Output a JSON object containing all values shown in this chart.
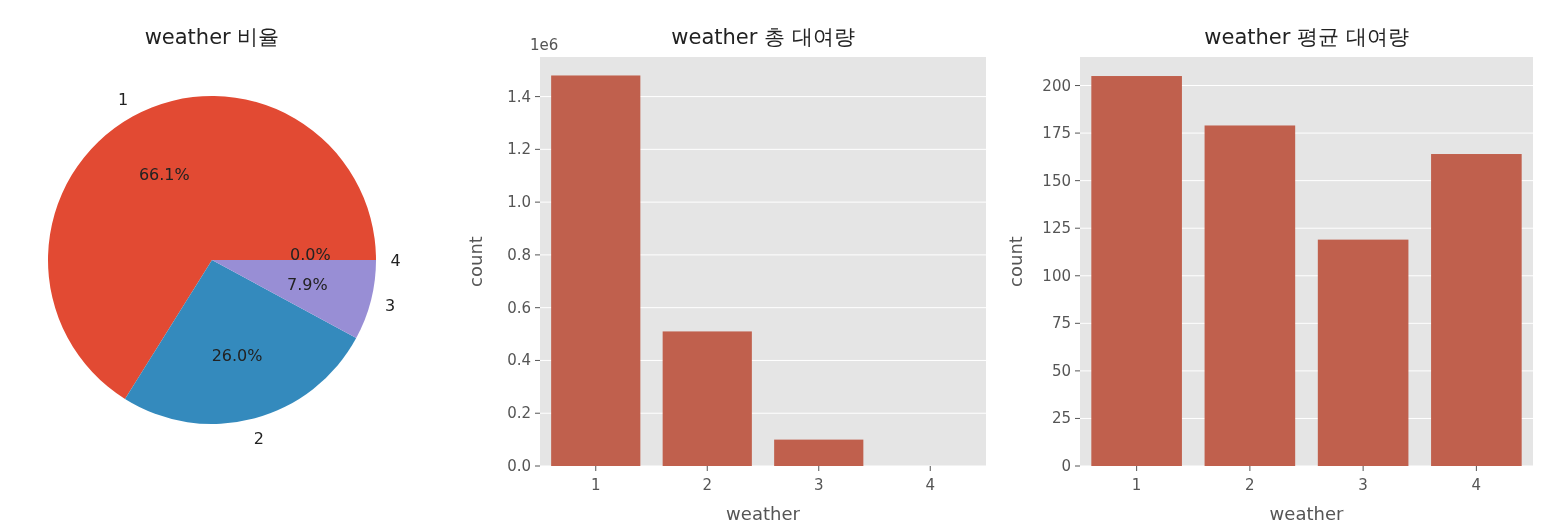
{
  "chart_data": [
    {
      "type": "pie",
      "title": "weather 비율",
      "categories": [
        "1",
        "2",
        "3",
        "4"
      ],
      "values": [
        66.1,
        26.0,
        7.9,
        0.0
      ],
      "colors": [
        "#e24a33",
        "#348abd",
        "#988ed5",
        "#777777"
      ],
      "value_labels": [
        "66.1%",
        "26.0%",
        "7.9%",
        "0.0%"
      ]
    },
    {
      "type": "bar",
      "title": "weather 총 대여량",
      "categories": [
        "1",
        "2",
        "3",
        "4"
      ],
      "values": [
        1.48,
        0.51,
        0.1,
        0
      ],
      "color": "#c0604d",
      "xlabel": "weather",
      "ylabel": "count",
      "ylim": [
        0,
        1.55
      ],
      "yticks": [
        {
          "value": 0,
          "label": "0.0"
        },
        {
          "value": 0.2,
          "label": "0.2"
        },
        {
          "value": 0.4,
          "label": "0.4"
        },
        {
          "value": 0.6,
          "label": "0.6"
        },
        {
          "value": 0.8,
          "label": "0.8"
        },
        {
          "value": 1,
          "label": "1.0"
        },
        {
          "value": 1.2,
          "label": "1.2"
        },
        {
          "value": 1.4,
          "label": "1.4"
        }
      ],
      "grid": "y",
      "annotations": [
        "1e6"
      ]
    },
    {
      "type": "bar",
      "title": "weather 평균 대여량",
      "categories": [
        "1",
        "2",
        "3",
        "4"
      ],
      "values": [
        205,
        179,
        119,
        164
      ],
      "color": "#c0604d",
      "xlabel": "weather",
      "ylabel": "count",
      "ylim": [
        0,
        215
      ],
      "yticks": [
        0,
        25,
        50,
        75,
        100,
        125,
        150,
        175,
        200
      ],
      "grid": "y"
    }
  ]
}
